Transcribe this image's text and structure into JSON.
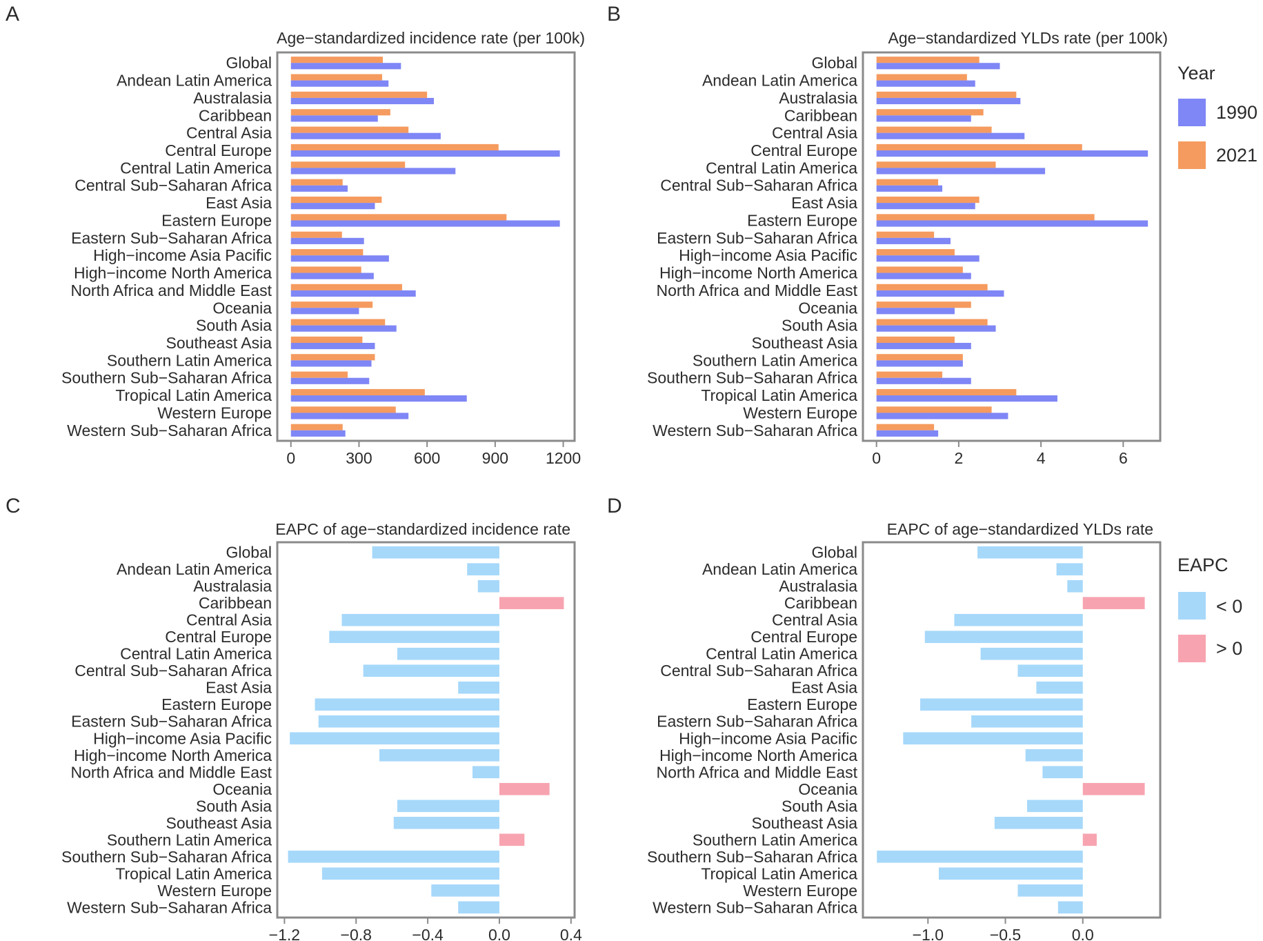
{
  "colors": {
    "y1990": "#7F86F5",
    "y2021": "#F59B5F",
    "neg": "#A6D8FA",
    "pos": "#F7A4B0",
    "frame": "#8a8a8a",
    "text": "#2b2b2b"
  },
  "legends": {
    "year": {
      "title": "Year",
      "items": [
        {
          "label": "1990",
          "color_key": "y1990"
        },
        {
          "label": "2021",
          "color_key": "y2021"
        }
      ]
    },
    "eapc": {
      "title": "EAPC",
      "items": [
        {
          "label": "< 0",
          "color_key": "neg"
        },
        {
          "label": "> 0",
          "color_key": "pos"
        }
      ]
    }
  },
  "chart_data": [
    {
      "panel": "A",
      "type": "bar",
      "orientation": "horizontal",
      "title": "Age−standardized incidence rate (per 100k)",
      "categories": [
        "Global",
        "Andean Latin America",
        "Australasia",
        "Caribbean",
        "Central Asia",
        "Central Europe",
        "Central Latin America",
        "Central Sub−Saharan Africa",
        "East Asia",
        "Eastern Europe",
        "Eastern Sub−Saharan Africa",
        "High−income Asia Pacific",
        "High−income North America",
        "North Africa and Middle East",
        "Oceania",
        "South Asia",
        "Southeast Asia",
        "Southern Latin America",
        "Southern Sub−Saharan Africa",
        "Tropical Latin America",
        "Western Europe",
        "Western Sub−Saharan Africa"
      ],
      "series": [
        {
          "name": "2021",
          "color_key": "y2021",
          "values": [
            405,
            402,
            600,
            438,
            518,
            915,
            503,
            228,
            400,
            950,
            225,
            318,
            310,
            490,
            360,
            415,
            315,
            370,
            250,
            590,
            462,
            228
          ]
        },
        {
          "name": "1990",
          "color_key": "y1990",
          "values": [
            485,
            430,
            630,
            383,
            660,
            1185,
            725,
            250,
            370,
            1185,
            322,
            432,
            365,
            550,
            300,
            465,
            370,
            355,
            345,
            775,
            518,
            240
          ]
        }
      ],
      "xlim": [
        -60,
        1250
      ],
      "ticks": [
        0,
        300,
        600,
        900,
        1200
      ],
      "tick_labels": [
        "0",
        "300",
        "600",
        "900",
        "1200"
      ],
      "legend": "right"
    },
    {
      "panel": "B",
      "type": "bar",
      "orientation": "horizontal",
      "title": "Age−standardized YLDs rate (per 100k)",
      "categories": [
        "Global",
        "Andean Latin America",
        "Australasia",
        "Caribbean",
        "Central Asia",
        "Central Europe",
        "Central Latin America",
        "Central Sub−Saharan Africa",
        "East Asia",
        "Eastern Europe",
        "Eastern Sub−Saharan Africa",
        "High−income Asia Pacific",
        "High−income North America",
        "North Africa and Middle East",
        "Oceania",
        "South Asia",
        "Southeast Asia",
        "Southern Latin America",
        "Southern Sub−Saharan Africa",
        "Tropical Latin America",
        "Western Europe",
        "Western Sub−Saharan Africa"
      ],
      "series": [
        {
          "name": "2021",
          "color_key": "y2021",
          "values": [
            2.5,
            2.2,
            3.4,
            2.6,
            2.8,
            5.0,
            2.9,
            1.5,
            2.5,
            5.3,
            1.4,
            1.9,
            2.1,
            2.7,
            2.3,
            2.7,
            1.9,
            2.1,
            1.6,
            3.4,
            2.8,
            1.4
          ]
        },
        {
          "name": "1990",
          "color_key": "y1990",
          "values": [
            3.0,
            2.4,
            3.5,
            2.3,
            3.6,
            6.6,
            4.1,
            1.6,
            2.4,
            6.6,
            1.8,
            2.5,
            2.3,
            3.1,
            1.9,
            2.9,
            2.3,
            2.1,
            2.3,
            4.4,
            3.2,
            1.5
          ]
        }
      ],
      "xlim": [
        -0.33,
        6.9
      ],
      "ticks": [
        0,
        2,
        4,
        6
      ],
      "tick_labels": [
        "0",
        "2",
        "4",
        "6"
      ],
      "legend": "right"
    },
    {
      "panel": "C",
      "type": "bar",
      "orientation": "horizontal",
      "title": "EAPC of age−standardized incidence rate",
      "categories": [
        "Global",
        "Andean Latin America",
        "Australasia",
        "Caribbean",
        "Central Asia",
        "Central Europe",
        "Central Latin America",
        "Central Sub−Saharan Africa",
        "East Asia",
        "Eastern Europe",
        "Eastern Sub−Saharan Africa",
        "High−income Asia Pacific",
        "High−income North America",
        "North Africa and Middle East",
        "Oceania",
        "South Asia",
        "Southeast Asia",
        "Southern Latin America",
        "Southern Sub−Saharan Africa",
        "Tropical Latin America",
        "Western Europe",
        "Western Sub−Saharan Africa"
      ],
      "values": [
        -0.71,
        -0.18,
        -0.12,
        0.36,
        -0.88,
        -0.95,
        -0.57,
        -0.76,
        -0.23,
        -1.03,
        -1.01,
        -1.17,
        -0.67,
        -0.15,
        0.28,
        -0.57,
        -0.59,
        0.14,
        -1.18,
        -0.99,
        -0.38,
        -0.23
      ],
      "xlim": [
        -1.24,
        0.42
      ],
      "ticks": [
        -1.2,
        -0.8,
        -0.4,
        0.0,
        0.4
      ],
      "tick_labels": [
        "−1.2",
        "−0.8",
        "−0.4",
        "0.0",
        "0.4"
      ],
      "legend": "right"
    },
    {
      "panel": "D",
      "type": "bar",
      "orientation": "horizontal",
      "title": "EAPC of age−standardized YLDs rate",
      "categories": [
        "Global",
        "Andean Latin America",
        "Australasia",
        "Caribbean",
        "Central Asia",
        "Central Europe",
        "Central Latin America",
        "Central Sub−Saharan Africa",
        "East Asia",
        "Eastern Europe",
        "Eastern Sub−Saharan Africa",
        "High−income Asia Pacific",
        "High−income North America",
        "North Africa and Middle East",
        "Oceania",
        "South Asia",
        "Southeast Asia",
        "Southern Latin America",
        "Southern Sub−Saharan Africa",
        "Tropical Latin America",
        "Western Europe",
        "Western Sub−Saharan Africa"
      ],
      "values": [
        -0.68,
        -0.17,
        -0.1,
        0.4,
        -0.83,
        -1.02,
        -0.66,
        -0.42,
        -0.3,
        -1.05,
        -0.72,
        -1.16,
        -0.37,
        -0.26,
        0.4,
        -0.36,
        -0.57,
        0.09,
        -1.33,
        -0.93,
        -0.42,
        -0.16
      ],
      "xlim": [
        -1.42,
        0.5
      ],
      "ticks": [
        -1.0,
        -0.5,
        0.0
      ],
      "tick_labels": [
        "−1.0",
        "−0.5",
        "0.0"
      ],
      "legend": "right"
    }
  ]
}
